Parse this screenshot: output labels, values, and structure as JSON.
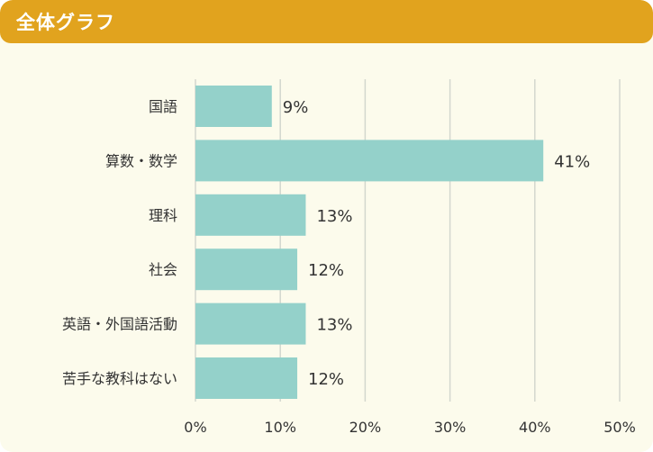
{
  "header": {
    "title": "全体グラフ"
  },
  "chart_data": {
    "type": "bar",
    "orientation": "horizontal",
    "categories": [
      "国語",
      "算数・数学",
      "理科",
      "社会",
      "英語・外国語活動",
      "苦手な教科はない"
    ],
    "values": [
      9,
      41,
      13,
      12,
      13,
      12
    ],
    "value_labels": [
      "9%",
      "41%",
      "13%",
      "12%",
      "13%",
      "12%"
    ],
    "xlim": [
      0,
      50
    ],
    "xticks": [
      "0%",
      "10%",
      "20%",
      "30%",
      "40%",
      "50%"
    ],
    "grid": "vertical",
    "legend": "none",
    "colors": {
      "bar": "#94d1ca",
      "grid": "#d3d7ce",
      "text": "#333333",
      "header": "#e1a31e",
      "background": "#fcfbec"
    }
  }
}
